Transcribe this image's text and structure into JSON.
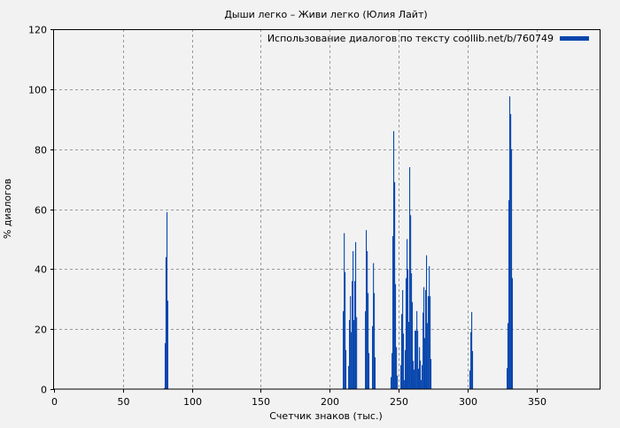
{
  "chart_data": {
    "type": "bar",
    "title": "Дыши легко – Живи легко (Юлия Лайт)",
    "xlabel": "Счетчик знаков (тыс.)",
    "ylabel": "% диалогов",
    "xlim": [
      0,
      396.5
    ],
    "ylim": [
      0,
      120
    ],
    "xticks": [
      0,
      50,
      100,
      150,
      200,
      250,
      300,
      350
    ],
    "yticks": [
      0,
      20,
      40,
      60,
      80,
      100,
      120
    ],
    "grid": true,
    "legend_position": "top-right",
    "series": [
      {
        "name": "Использование диалогов по тексту coollib.net/b/760749",
        "color": "#0645ad",
        "points": [
          [
            79.7,
            0.3
          ],
          [
            80.3,
            15.3
          ],
          [
            80.9,
            44
          ],
          [
            81.6,
            59
          ],
          [
            82.2,
            29.5
          ],
          [
            209.5,
            26
          ],
          [
            210.2,
            52
          ],
          [
            210.8,
            39
          ],
          [
            211.4,
            13
          ],
          [
            213.4,
            7.7
          ],
          [
            214.0,
            23
          ],
          [
            214.7,
            31
          ],
          [
            215.3,
            19
          ],
          [
            216.0,
            36
          ],
          [
            216.6,
            46
          ],
          [
            217.2,
            23
          ],
          [
            217.9,
            36
          ],
          [
            218.5,
            49
          ],
          [
            219.2,
            24
          ],
          [
            225.6,
            26
          ],
          [
            226.2,
            53
          ],
          [
            226.9,
            46
          ],
          [
            227.5,
            32
          ],
          [
            228.1,
            12
          ],
          [
            230.7,
            21
          ],
          [
            231.4,
            42
          ],
          [
            232.0,
            32
          ],
          [
            232.6,
            10.6
          ],
          [
            244.2,
            4
          ],
          [
            244.9,
            12
          ],
          [
            245.5,
            51
          ],
          [
            246.1,
            86
          ],
          [
            246.8,
            69
          ],
          [
            247.4,
            35
          ],
          [
            248.1,
            14
          ],
          [
            248.7,
            4.5
          ],
          [
            251.3,
            8
          ],
          [
            251.9,
            25
          ],
          [
            252.6,
            33
          ],
          [
            253.2,
            18.5
          ],
          [
            253.9,
            3
          ],
          [
            254.5,
            13
          ],
          [
            255.1,
            37
          ],
          [
            255.8,
            50
          ],
          [
            256.4,
            40
          ],
          [
            257.1,
            22.4
          ],
          [
            257.7,
            74
          ],
          [
            258.4,
            58
          ],
          [
            259.0,
            38.6
          ],
          [
            259.6,
            29
          ],
          [
            260.3,
            9.4
          ],
          [
            260.9,
            6.5
          ],
          [
            261.6,
            19.5
          ],
          [
            262.2,
            19.5
          ],
          [
            262.9,
            26
          ],
          [
            263.5,
            19.5
          ],
          [
            264.1,
            6.8
          ],
          [
            264.8,
            14
          ],
          [
            265.4,
            9.5
          ],
          [
            266.1,
            3
          ],
          [
            266.7,
            8
          ],
          [
            267.4,
            25.5
          ],
          [
            268.0,
            34
          ],
          [
            268.6,
            17
          ],
          [
            269.3,
            33
          ],
          [
            269.9,
            44.6
          ],
          [
            270.6,
            22
          ],
          [
            271.2,
            31
          ],
          [
            271.9,
            41
          ],
          [
            272.5,
            31
          ],
          [
            273.1,
            10
          ],
          [
            301.4,
            6.2
          ],
          [
            302.1,
            19
          ],
          [
            302.7,
            25.7
          ],
          [
            303.3,
            12.7
          ],
          [
            328.4,
            7
          ],
          [
            329.0,
            22
          ],
          [
            329.7,
            63
          ],
          [
            330.3,
            97.6
          ],
          [
            331.0,
            91.7
          ],
          [
            331.6,
            80
          ],
          [
            332.2,
            37
          ]
        ]
      }
    ]
  }
}
